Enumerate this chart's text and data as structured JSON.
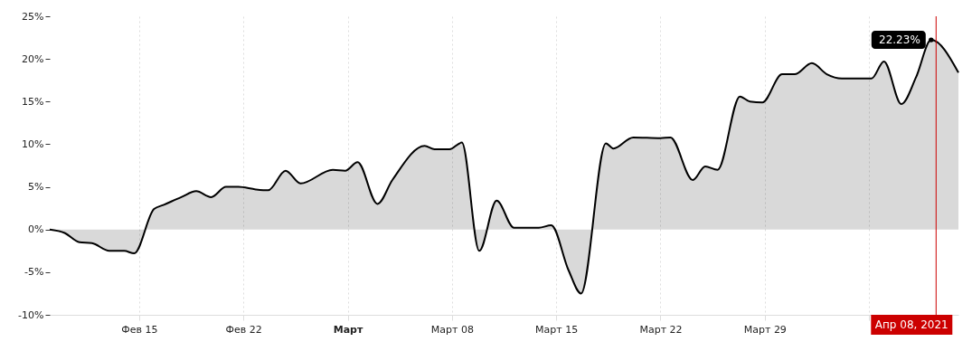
{
  "chart_data": {
    "type": "area",
    "x": [
      "2021-02-09T00:00",
      "2021-02-10T00:00",
      "2021-02-11T00:00",
      "2021-02-11T20:00",
      "2021-02-13T00:00",
      "2021-02-14T00:00",
      "2021-02-14T16:00",
      "2021-02-16T00:00",
      "2021-02-16T16:00",
      "2021-02-17T20:00",
      "2021-02-18T20:00",
      "2021-02-19T20:00",
      "2021-02-20T20:00",
      "2021-02-21T16:00",
      "2021-02-22T20:00",
      "2021-02-23T16:00",
      "2021-02-24T20:00",
      "2021-02-25T20:00",
      "2021-02-28T00:00",
      "2021-02-28T20:00",
      "2021-03-01T16:00",
      "2021-03-03T00:00",
      "2021-03-04T00:00",
      "2021-03-06T04:00",
      "2021-03-06T20:00",
      "2021-03-07T20:00",
      "2021-03-08T16:00",
      "2021-03-09T20:00",
      "2021-03-11T00:00",
      "2021-03-12T04:00",
      "2021-03-13T20:00",
      "2021-03-14T16:00",
      "2021-03-15T20:00",
      "2021-03-16T16:00",
      "2021-03-18T08:00",
      "2021-03-18T20:00",
      "2021-03-20T04:00",
      "2021-03-22T00:00",
      "2021-03-22T16:00",
      "2021-03-24T04:00",
      "2021-03-25T00:00",
      "2021-03-25T20:00",
      "2021-03-27T08:00",
      "2021-03-28T00:00",
      "2021-03-28T20:00",
      "2021-03-30T04:00",
      "2021-03-31T00:00",
      "2021-04-01T04:00",
      "2021-04-02T04:00",
      "2021-04-03T04:00",
      "2021-04-05T04:00",
      "2021-04-06T00:00",
      "2021-04-07T04:00",
      "2021-04-08T04:00",
      "2021-04-09T04:00",
      "2021-04-11T00:00"
    ],
    "series": [
      {
        "color": "#000000",
        "values": [
          0,
          -0.4,
          -1.5,
          -1.6,
          -2.5,
          -2.5,
          -2.8,
          2.4,
          2.9,
          3.8,
          4.5,
          3.8,
          5.0,
          5.0,
          4.7,
          4.6,
          6.9,
          5.4,
          7.0,
          6.9,
          7.9,
          3.0,
          5.8,
          9.8,
          9.4,
          9.4,
          10.2,
          -2.5,
          3.4,
          0.2,
          0.2,
          0.5,
          -4.8,
          -7.5,
          10.1,
          9.5,
          10.8,
          10.7,
          10.8,
          5.8,
          7.4,
          7.0,
          15.6,
          15.0,
          14.9,
          18.2,
          18.2,
          19.5,
          18.2,
          17.7,
          17.7,
          19.7,
          14.7,
          17.9,
          22.23,
          18.4
        ]
      }
    ],
    "xlim": [
      "2021-02-09T00:00",
      "2021-04-11T00:00"
    ],
    "xticks": [
      {
        "value": "2021-02-15",
        "label": "Фев 15"
      },
      {
        "value": "2021-02-22",
        "label": "Фев 22"
      },
      {
        "value": "2021-03-01",
        "label": "Март"
      },
      {
        "value": "2021-03-08",
        "label": "Март 08"
      },
      {
        "value": "2021-03-15",
        "label": "Март 15"
      },
      {
        "value": "2021-03-22",
        "label": "Март 22"
      },
      {
        "value": "2021-03-29",
        "label": "Март 29"
      },
      {
        "value": "2021-04-05",
        "label": null
      }
    ],
    "ylim": [
      -10,
      25
    ],
    "yticks": [
      {
        "value": -10,
        "label": "-10%"
      },
      {
        "value": -5,
        "label": "-5%"
      },
      {
        "value": 0,
        "label": "0%"
      },
      {
        "value": 5,
        "label": "5%"
      },
      {
        "value": 10,
        "label": "10%"
      },
      {
        "value": 15,
        "label": "15%"
      },
      {
        "value": 20,
        "label": "20%"
      },
      {
        "value": 25,
        "label": "25%"
      }
    ],
    "grid": "x",
    "marker": "none",
    "annotations": [
      {
        "text": "22.23%",
        "x": "2021-04-09T04:00",
        "y": 22.23
      }
    ],
    "ref_lines": [
      {
        "axis": "x",
        "value": "2021-04-09T12:00",
        "label": "Апр 08, 2021",
        "color": "#cc0000"
      }
    ]
  }
}
